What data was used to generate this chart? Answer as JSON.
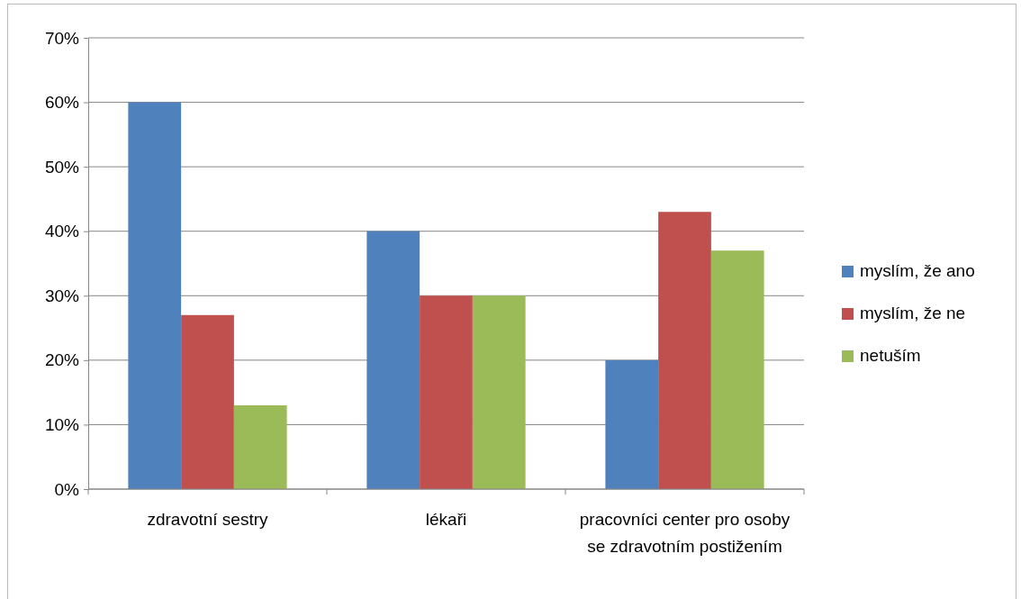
{
  "chart_data": {
    "type": "bar",
    "categories": [
      "zdravotní sestry",
      "lékaři",
      "pracovníci center pro osoby se zdravotním postižením"
    ],
    "series": [
      {
        "name": "myslím, že ano",
        "color": "#4f81bd",
        "values": [
          60,
          40,
          20
        ]
      },
      {
        "name": "myslím, že ne",
        "color": "#c0504d",
        "values": [
          27,
          30,
          43
        ]
      },
      {
        "name": "netuším",
        "color": "#9bbb59",
        "values": [
          13,
          30,
          37
        ]
      }
    ],
    "ylim": [
      0,
      70
    ],
    "yticks": [
      {
        "value": 0,
        "label": "0%"
      },
      {
        "value": 10,
        "label": "10%"
      },
      {
        "value": 20,
        "label": "20%"
      },
      {
        "value": 30,
        "label": "30%"
      },
      {
        "value": 40,
        "label": "40%"
      },
      {
        "value": 50,
        "label": "50%"
      },
      {
        "value": 60,
        "label": "60%"
      },
      {
        "value": 70,
        "label": "70%"
      }
    ],
    "grid": "y",
    "legend": "right"
  }
}
